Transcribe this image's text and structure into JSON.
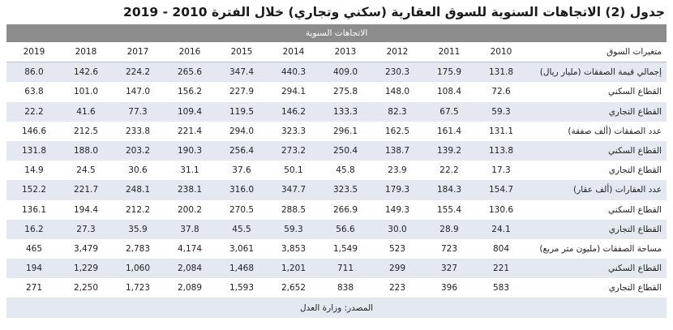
{
  "title": "جدول (2) الاتجاهات السنوية للسوق العقارية (سكني وتجاري) خلال الفترة 2010 - 2019",
  "band_label": "الاتجاهات السنوية",
  "header": {
    "label": "متغيرات السوق",
    "years": [
      "2019",
      "2018",
      "2017",
      "2016",
      "2015",
      "2014",
      "2013",
      "2012",
      "2011",
      "2010"
    ]
  },
  "rows": [
    {
      "label": "إجمالي قيمة الصفقات (مليار ريال)",
      "values": [
        "86.0",
        "142.6",
        "224.2",
        "265.6",
        "347.4",
        "440.3",
        "409.0",
        "230.3",
        "175.9",
        "131.8"
      ]
    },
    {
      "label": "القطاع السكني",
      "values": [
        "63.8",
        "101.0",
        "147.0",
        "156.2",
        "227.9",
        "294.1",
        "275.8",
        "148.0",
        "108.4",
        "72.6"
      ]
    },
    {
      "label": "القطاع التجاري",
      "values": [
        "22.2",
        "41.6",
        "77.3",
        "109.4",
        "119.5",
        "146.2",
        "133.3",
        "82.3",
        "67.5",
        "59.3"
      ]
    },
    {
      "label": "عدد الصفقات (ألف صفقة)",
      "values": [
        "146.6",
        "212.5",
        "233.8",
        "221.4",
        "294.0",
        "323.3",
        "296.1",
        "162.5",
        "161.4",
        "131.1"
      ]
    },
    {
      "label": "القطاع السكني",
      "values": [
        "131.8",
        "188.0",
        "203.2",
        "190.3",
        "256.4",
        "273.2",
        "250.4",
        "138.7",
        "139.2",
        "113.8"
      ]
    },
    {
      "label": "القطاع التجاري",
      "values": [
        "14.9",
        "24.5",
        "30.6",
        "31.1",
        "37.6",
        "50.1",
        "45.8",
        "23.9",
        "22.2",
        "17.3"
      ]
    },
    {
      "label": "عدد العقارات (ألف عقار)",
      "values": [
        "152.2",
        "221.7",
        "248.1",
        "238.1",
        "316.0",
        "347.7",
        "323.5",
        "179.3",
        "184.3",
        "154.7"
      ]
    },
    {
      "label": "القطاع السكني",
      "values": [
        "136.1",
        "194.4",
        "212.2",
        "200.2",
        "270.5",
        "288.5",
        "266.9",
        "149.3",
        "155.4",
        "130.6"
      ]
    },
    {
      "label": "القطاع التجاري",
      "values": [
        "16.2",
        "27.3",
        "35.9",
        "37.8",
        "45.5",
        "59.3",
        "56.6",
        "30.0",
        "28.9",
        "24.1"
      ]
    },
    {
      "label": "مساحة الصفقات (مليون متر مربع)",
      "values": [
        "465",
        "3,479",
        "2,783",
        "4,174",
        "3,061",
        "3,853",
        "1,549",
        "523",
        "723",
        "804"
      ]
    },
    {
      "label": "القطاع السكني",
      "values": [
        "194",
        "1,229",
        "1,060",
        "2,084",
        "1,468",
        "1,201",
        "711",
        "299",
        "327",
        "221"
      ]
    },
    {
      "label": "القطاع التجاري",
      "values": [
        "271",
        "2,250",
        "1,723",
        "2,089",
        "1,593",
        "2,652",
        "838",
        "223",
        "396",
        "583"
      ]
    }
  ],
  "source": "المصدر: وزارة العدل"
}
